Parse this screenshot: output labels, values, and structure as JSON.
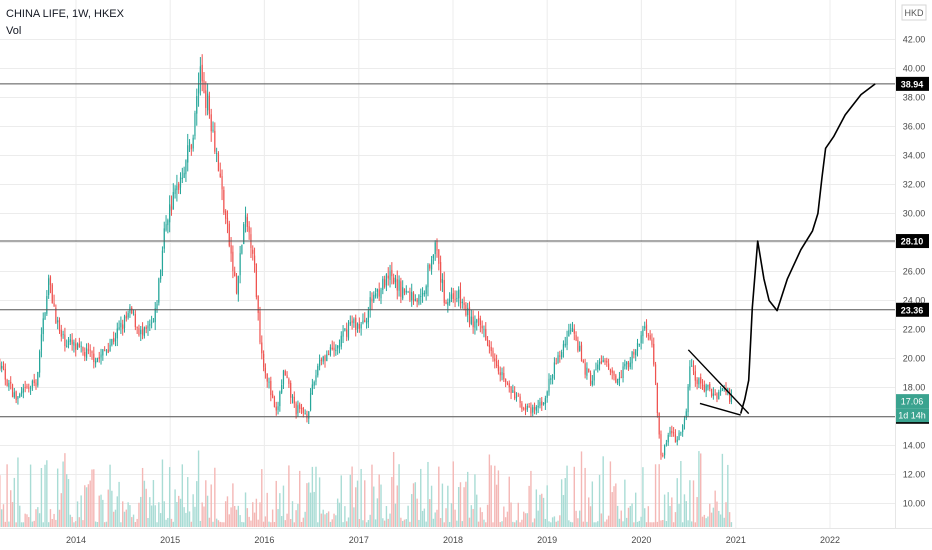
{
  "header": {
    "symbol_line": "CHINA LIFE, 1W, HKEX",
    "volume_label": "Vol",
    "currency": "HKD"
  },
  "colors": {
    "up": "#26a69a",
    "down": "#ef5350",
    "vol_up": "#a9dcd5",
    "vol_down": "#f4b7b5",
    "drawing": "#000000",
    "grid": "#ececec",
    "axis_text": "#4a4a4a"
  },
  "chart_data": {
    "type": "candlestick",
    "interval": "1W",
    "y_ticks": [
      "42.00",
      "40.00",
      "38.00",
      "36.00",
      "34.00",
      "32.00",
      "30.00",
      "28.00",
      "26.00",
      "24.00",
      "22.00",
      "20.00",
      "18.00",
      "16.00",
      "14.00",
      "12.00",
      "10.00"
    ],
    "x_ticks": [
      "2014",
      "2015",
      "2016",
      "2017",
      "2018",
      "2019",
      "2020",
      "2021",
      "2022"
    ],
    "price_anchors": [
      [
        "2013-01-01",
        23.4
      ],
      [
        "2013-03-01",
        19.8
      ],
      [
        "2013-05-15",
        17.2
      ],
      [
        "2013-08-01",
        18.4
      ],
      [
        "2013-09-15",
        25.5
      ],
      [
        "2013-11-01",
        21.5
      ],
      [
        "2014-01-15",
        20.5
      ],
      [
        "2014-04-01",
        20.0
      ],
      [
        "2014-06-01",
        21.5
      ],
      [
        "2014-08-01",
        23.2
      ],
      [
        "2014-09-15",
        21.5
      ],
      [
        "2014-11-01",
        22.5
      ],
      [
        "2014-12-15",
        29.5
      ],
      [
        "2015-02-01",
        32.0
      ],
      [
        "2015-04-01",
        35.5
      ],
      [
        "2015-04-25",
        40.0
      ],
      [
        "2015-06-15",
        36.0
      ],
      [
        "2015-08-01",
        30.0
      ],
      [
        "2015-09-15",
        24.5
      ],
      [
        "2015-10-15",
        29.5
      ],
      [
        "2015-11-15",
        28.0
      ],
      [
        "2015-12-20",
        20.5
      ],
      [
        "2016-02-15",
        16.0
      ],
      [
        "2016-03-15",
        19.0
      ],
      [
        "2016-05-01",
        16.5
      ],
      [
        "2016-06-15",
        16.2
      ],
      [
        "2016-08-01",
        20.0
      ],
      [
        "2016-10-01",
        20.5
      ],
      [
        "2016-12-01",
        22.5
      ],
      [
        "2017-01-15",
        22.2
      ],
      [
        "2017-03-01",
        24.5
      ],
      [
        "2017-05-01",
        25.5
      ],
      [
        "2017-07-01",
        24.5
      ],
      [
        "2017-09-01",
        24.0
      ],
      [
        "2017-10-20",
        28.0
      ],
      [
        "2017-12-01",
        24.0
      ],
      [
        "2018-01-15",
        24.5
      ],
      [
        "2018-03-15",
        22.5
      ],
      [
        "2018-05-01",
        22.0
      ],
      [
        "2018-06-15",
        20.0
      ],
      [
        "2018-08-01",
        18.0
      ],
      [
        "2018-09-15",
        17.0
      ],
      [
        "2018-11-01",
        16.2
      ],
      [
        "2018-12-15",
        17.0
      ],
      [
        "2019-02-01",
        19.5
      ],
      [
        "2019-04-10",
        22.5
      ],
      [
        "2019-05-20",
        19.5
      ],
      [
        "2019-06-20",
        18.5
      ],
      [
        "2019-08-01",
        20.0
      ],
      [
        "2019-09-15",
        18.5
      ],
      [
        "2019-11-01",
        19.5
      ],
      [
        "2019-12-15",
        20.5
      ],
      [
        "2020-01-15",
        22.5
      ],
      [
        "2020-02-15",
        20.5
      ],
      [
        "2020-03-19",
        12.8
      ],
      [
        "2020-04-15",
        15.0
      ],
      [
        "2020-05-20",
        14.3
      ],
      [
        "2020-06-20",
        15.8
      ],
      [
        "2020-07-06",
        19.5
      ],
      [
        "2020-08-01",
        18.5
      ],
      [
        "2020-09-01",
        18.0
      ],
      [
        "2020-10-15",
        17.5
      ],
      [
        "2020-11-15",
        18.0
      ],
      [
        "2020-12-20",
        17.06
      ]
    ],
    "volume_axis_max": 10,
    "horizontal_levels": [
      {
        "price": 38.94,
        "label": "38.94"
      },
      {
        "price": 28.1,
        "label": "28.10"
      },
      {
        "price": 23.36,
        "label": "23.36"
      },
      {
        "price": 15.98,
        "label": "15.98"
      }
    ],
    "last_price_badge": "17.06",
    "countdown_badge": "1d 14h",
    "drawings": {
      "wedge_upper": [
        [
          "2020-07-01",
          20.6
        ],
        [
          "2021-02-20",
          16.2
        ]
      ],
      "wedge_lower": [
        [
          "2020-08-15",
          16.9
        ],
        [
          "2021-01-20",
          16.1
        ]
      ],
      "forecast_path": [
        [
          "2021-01-20",
          16.2
        ],
        [
          "2021-02-05",
          17.2
        ],
        [
          "2021-02-20",
          18.5
        ],
        [
          "2021-03-06",
          23.5
        ],
        [
          "2021-03-27",
          28.1
        ],
        [
          "2021-04-20",
          25.5
        ],
        [
          "2021-05-10",
          24.0
        ],
        [
          "2021-06-10",
          23.3
        ],
        [
          "2021-07-20",
          25.5
        ],
        [
          "2021-09-10",
          27.5
        ],
        [
          "2021-10-25",
          28.8
        ],
        [
          "2021-11-15",
          30.0
        ],
        [
          "2021-12-01",
          32.5
        ],
        [
          "2021-12-15",
          34.5
        ],
        [
          "2022-01-15",
          35.3
        ],
        [
          "2022-03-01",
          36.8
        ],
        [
          "2022-05-01",
          38.2
        ],
        [
          "2022-06-25",
          38.94
        ]
      ]
    }
  }
}
